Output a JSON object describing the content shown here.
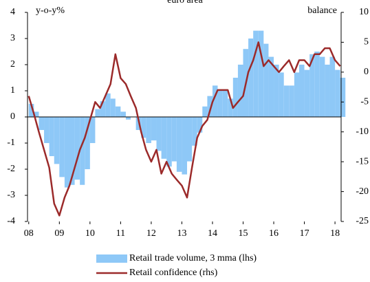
{
  "chart_data": {
    "type": "bar-line",
    "title": "euro area",
    "y_label": "y-o-y%",
    "y2_label": "balance",
    "x": [
      2008.0,
      2008.17,
      2008.33,
      2008.5,
      2008.67,
      2008.83,
      2009.0,
      2009.17,
      2009.33,
      2009.5,
      2009.67,
      2009.83,
      2010.0,
      2010.17,
      2010.33,
      2010.5,
      2010.67,
      2010.83,
      2011.0,
      2011.17,
      2011.33,
      2011.5,
      2011.67,
      2011.83,
      2012.0,
      2012.17,
      2012.33,
      2012.5,
      2012.67,
      2012.83,
      2013.0,
      2013.17,
      2013.33,
      2013.5,
      2013.67,
      2013.83,
      2014.0,
      2014.17,
      2014.33,
      2014.5,
      2014.67,
      2014.83,
      2015.0,
      2015.17,
      2015.33,
      2015.5,
      2015.67,
      2015.83,
      2016.0,
      2016.17,
      2016.33,
      2016.5,
      2016.67,
      2016.83,
      2017.0,
      2017.17,
      2017.33,
      2017.5,
      2017.67,
      2017.83,
      2018.0,
      2018.17
    ],
    "series": [
      {
        "name": "Retail trade volume, 3 mma (lhs)",
        "color": "#8ec8f7",
        "kind": "bar",
        "values": [
          0.5,
          0.2,
          -0.5,
          -1.0,
          -1.5,
          -1.8,
          -2.3,
          -2.7,
          -2.6,
          -2.4,
          -2.6,
          -2.0,
          -1.0,
          0.3,
          0.6,
          0.9,
          0.7,
          0.4,
          0.2,
          -0.1,
          0,
          -0.5,
          -0.8,
          -1.0,
          -0.9,
          -1.3,
          -1.6,
          -1.9,
          -1.7,
          -2.1,
          -2.2,
          -1.7,
          -1.1,
          -0.6,
          0.4,
          0.8,
          1.2,
          1.0,
          1.0,
          0.7,
          1.5,
          2.0,
          2.6,
          3.0,
          3.3,
          3.3,
          2.8,
          2.3,
          2.0,
          1.7,
          1.2,
          1.2,
          1.7,
          2.0,
          1.8,
          2.4,
          2.5,
          2.3,
          2.0,
          2.3,
          1.8,
          1.5
        ]
      },
      {
        "name": "Retail confidence (rhs)",
        "color": "#9b2a2a",
        "kind": "line",
        "axis": "y2",
        "values": [
          -4,
          -7,
          -10,
          -13,
          -16,
          -22,
          -24,
          -21,
          -19,
          -16,
          -13,
          -11,
          -8,
          -5,
          -6,
          -4,
          -2,
          3,
          -1,
          -2,
          -4,
          -6,
          -10,
          -13,
          -15,
          -13,
          -17,
          -15,
          -17,
          -18,
          -19,
          -21,
          -16,
          -11,
          -9,
          -8,
          -5,
          -3,
          -3,
          -3,
          -6,
          -5,
          -4,
          0,
          2,
          5,
          1,
          2,
          1,
          0,
          1,
          2,
          0,
          2,
          2,
          1,
          3,
          3,
          4,
          4,
          2,
          1
        ]
      }
    ],
    "xlim": [
      2007.96,
      2018.2
    ],
    "xticks": [
      {
        "value": 2008,
        "label": "08"
      },
      {
        "value": 2009,
        "label": "09"
      },
      {
        "value": 2010,
        "label": "10"
      },
      {
        "value": 2011,
        "label": "11"
      },
      {
        "value": 2012,
        "label": "12"
      },
      {
        "value": 2013,
        "label": "13"
      },
      {
        "value": 2014,
        "label": "14"
      },
      {
        "value": 2015,
        "label": "15"
      },
      {
        "value": 2016,
        "label": "16"
      },
      {
        "value": 2017,
        "label": "17"
      },
      {
        "value": 2018,
        "label": "18"
      }
    ],
    "ylim": [
      -4,
      4
    ],
    "yticks": [
      -4,
      -3,
      -2,
      -1,
      0,
      1,
      2,
      3,
      4
    ],
    "y2lim": [
      -25,
      10
    ],
    "y2ticks": [
      -25,
      -20,
      -15,
      -10,
      -5,
      0,
      5,
      10
    ]
  }
}
